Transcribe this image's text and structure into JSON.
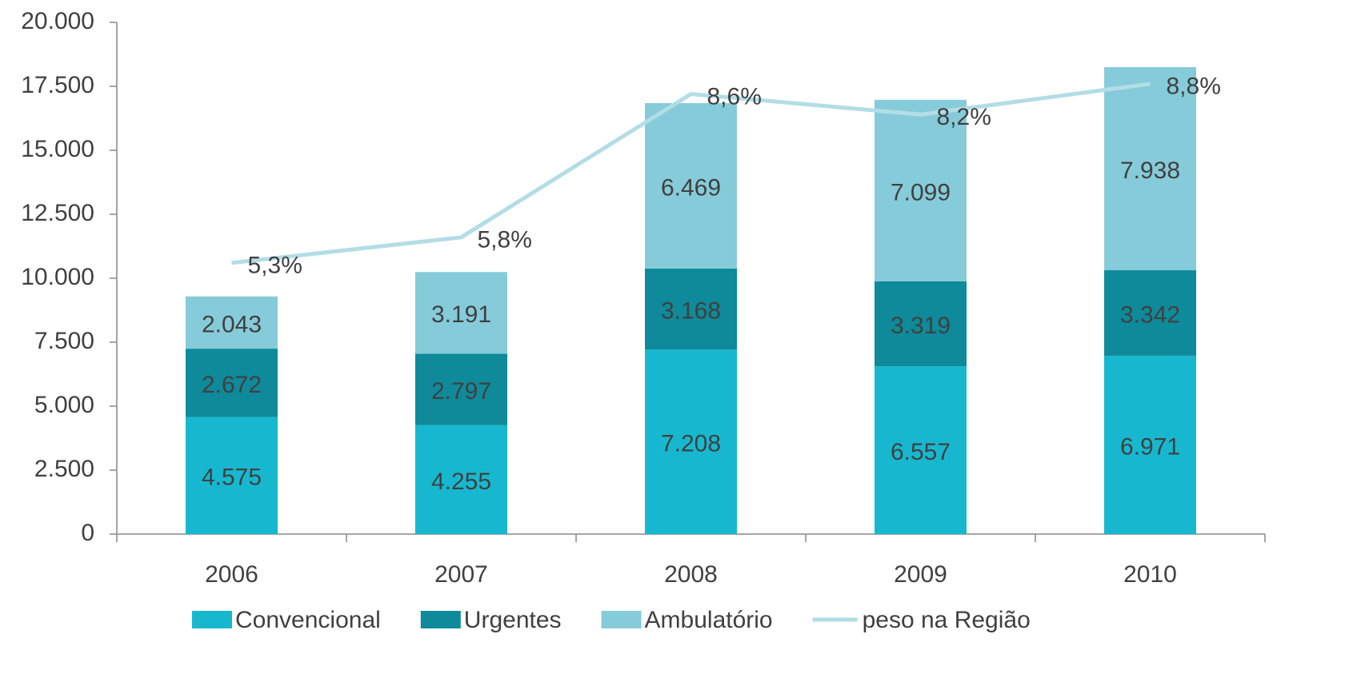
{
  "chart_data": {
    "type": "bar",
    "stacked": true,
    "categories": [
      "2006",
      "2007",
      "2008",
      "2009",
      "2010"
    ],
    "series": [
      {
        "name": "Convencional",
        "type": "bar",
        "color": "#17b8cf",
        "values": [
          4575,
          4255,
          7208,
          6557,
          6971
        ],
        "value_labels": [
          "4.575",
          "4.255",
          "7.208",
          "6.557",
          "6.971"
        ]
      },
      {
        "name": "Urgentes",
        "type": "bar",
        "color": "#0e8a9a",
        "values": [
          2672,
          2797,
          3168,
          3319,
          3342
        ],
        "value_labels": [
          "2.672",
          "2.797",
          "3.168",
          "3.319",
          "3.342"
        ]
      },
      {
        "name": "Ambulatório",
        "type": "bar",
        "color": "#86cbd9",
        "values": [
          2043,
          3191,
          6469,
          7099,
          7938
        ],
        "value_labels": [
          "2.043",
          "3.191",
          "6.469",
          "7.099",
          "7.938"
        ]
      },
      {
        "name": "peso na Região",
        "type": "line",
        "axis": "y2",
        "color": "#b3dde6",
        "values": [
          5.3,
          5.8,
          8.6,
          8.2,
          8.8
        ],
        "value_labels": [
          "5,3%",
          "5,8%",
          "8,6%",
          "8,2%",
          "8,8%"
        ]
      }
    ],
    "ylim": [
      0,
      20000
    ],
    "yticks": [
      0,
      {
        "value": 2500,
        "label": "2.500"
      },
      {
        "value": 5000,
        "label": "5.000"
      },
      {
        "value": 7500,
        "label": "7.500"
      },
      {
        "value": 10000,
        "label": "10.000"
      },
      {
        "value": 12500,
        "label": "12.500"
      },
      {
        "value": 15000,
        "label": "15.000"
      },
      {
        "value": 17500,
        "label": "17.500"
      },
      {
        "value": 20000,
        "label": "20.000"
      }
    ],
    "y2lim": [
      0,
      10
    ],
    "legend": "bottom"
  }
}
